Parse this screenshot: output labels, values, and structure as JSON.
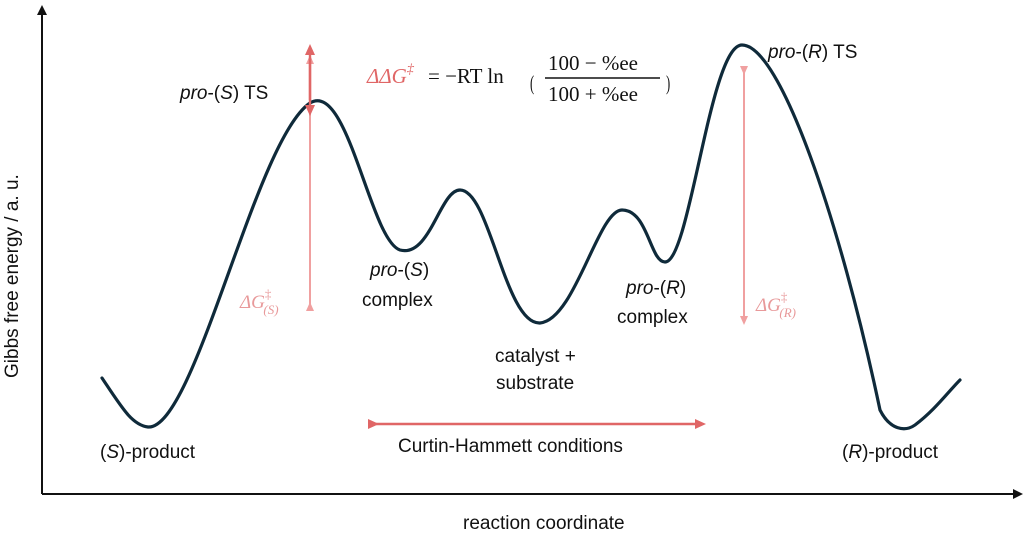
{
  "axes": {
    "x_label": "reaction coordinate",
    "y_label": "Gibbs free energy / a. u."
  },
  "equation": {
    "lhs": "ΔΔG",
    "dagger": "‡",
    "equals_minus_RT_ln": "= −RT ln",
    "numerator": "100 − %ee",
    "denominator": "100 + %ee"
  },
  "labels": {
    "pro_s_ts": {
      "italic": "pro",
      "sep": "-(",
      "config": "S",
      "rest": ") TS"
    },
    "pro_r_ts": {
      "italic": "pro",
      "sep": "-(",
      "config": "R",
      "rest": ") TS"
    },
    "pro_s_complex": {
      "italic": "pro",
      "sep": "-(",
      "config": "S",
      "close": ")",
      "line2": "complex"
    },
    "pro_r_complex": {
      "italic": "pro",
      "sep": "-(",
      "config": "R",
      "close": ")",
      "line2": "complex"
    },
    "catalyst": {
      "line1": "catalyst +",
      "line2": "substrate"
    },
    "s_product": {
      "open": "(",
      "config": "S",
      "rest": ")-product"
    },
    "r_product": {
      "open": "(",
      "config": "R",
      "rest": ")-product"
    },
    "curtin_hammett": "Curtin-Hammett conditions",
    "dg_s": {
      "main": "ΔG",
      "sup": "‡",
      "sub": "(S)"
    },
    "dg_r": {
      "main": "ΔG",
      "sup": "‡",
      "sub": "(R)"
    }
  },
  "colors": {
    "curve": "#0f2a3a",
    "arrow_light": "#f0a0a0",
    "arrow_strong": "#e06666",
    "axis": "#111111"
  }
}
